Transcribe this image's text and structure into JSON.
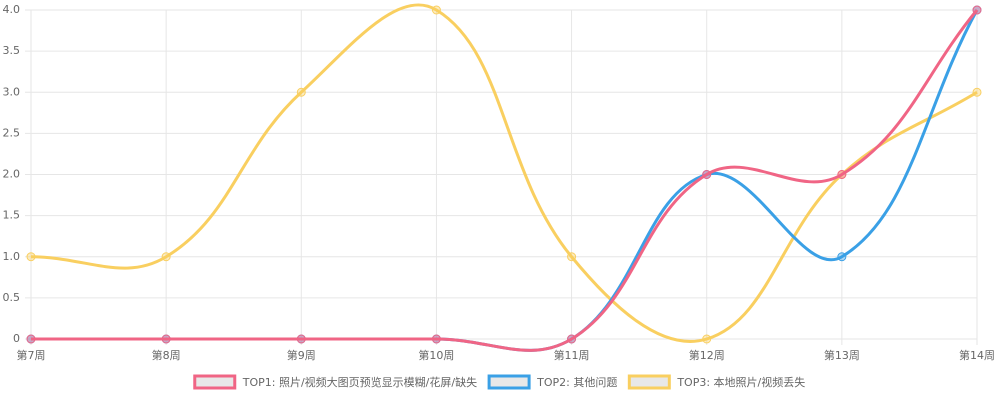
{
  "chart_data": {
    "type": "line",
    "categories": [
      "第7周",
      "第8周",
      "第9周",
      "第10周",
      "第11周",
      "第12周",
      "第13周",
      "第14周"
    ],
    "series": [
      {
        "name": "TOP1: 照片/视频大图页预览显示模糊/花屏/缺失",
        "color": "#f06585",
        "values": [
          0,
          0,
          0,
          0,
          0,
          2,
          2,
          4
        ]
      },
      {
        "name": "TOP2: 其他问题",
        "color": "#3aa0e6",
        "values": [
          0,
          0,
          0,
          0,
          0,
          2,
          1,
          4
        ]
      },
      {
        "name": "TOP3: 本地照片/视频丢失",
        "color": "#f9cf60",
        "values": [
          1,
          1,
          3,
          4,
          1,
          0,
          2,
          3
        ]
      }
    ],
    "ylim": [
      0,
      4
    ],
    "yticks": [
      0,
      0.5,
      {
        "value": 1,
        "label": "1.0"
      },
      1.5,
      {
        "value": 2,
        "label": "2.0"
      },
      2.5,
      {
        "value": 3,
        "label": "3.0"
      },
      3.5,
      {
        "value": 4,
        "label": "4.0"
      }
    ],
    "grid": true
  }
}
